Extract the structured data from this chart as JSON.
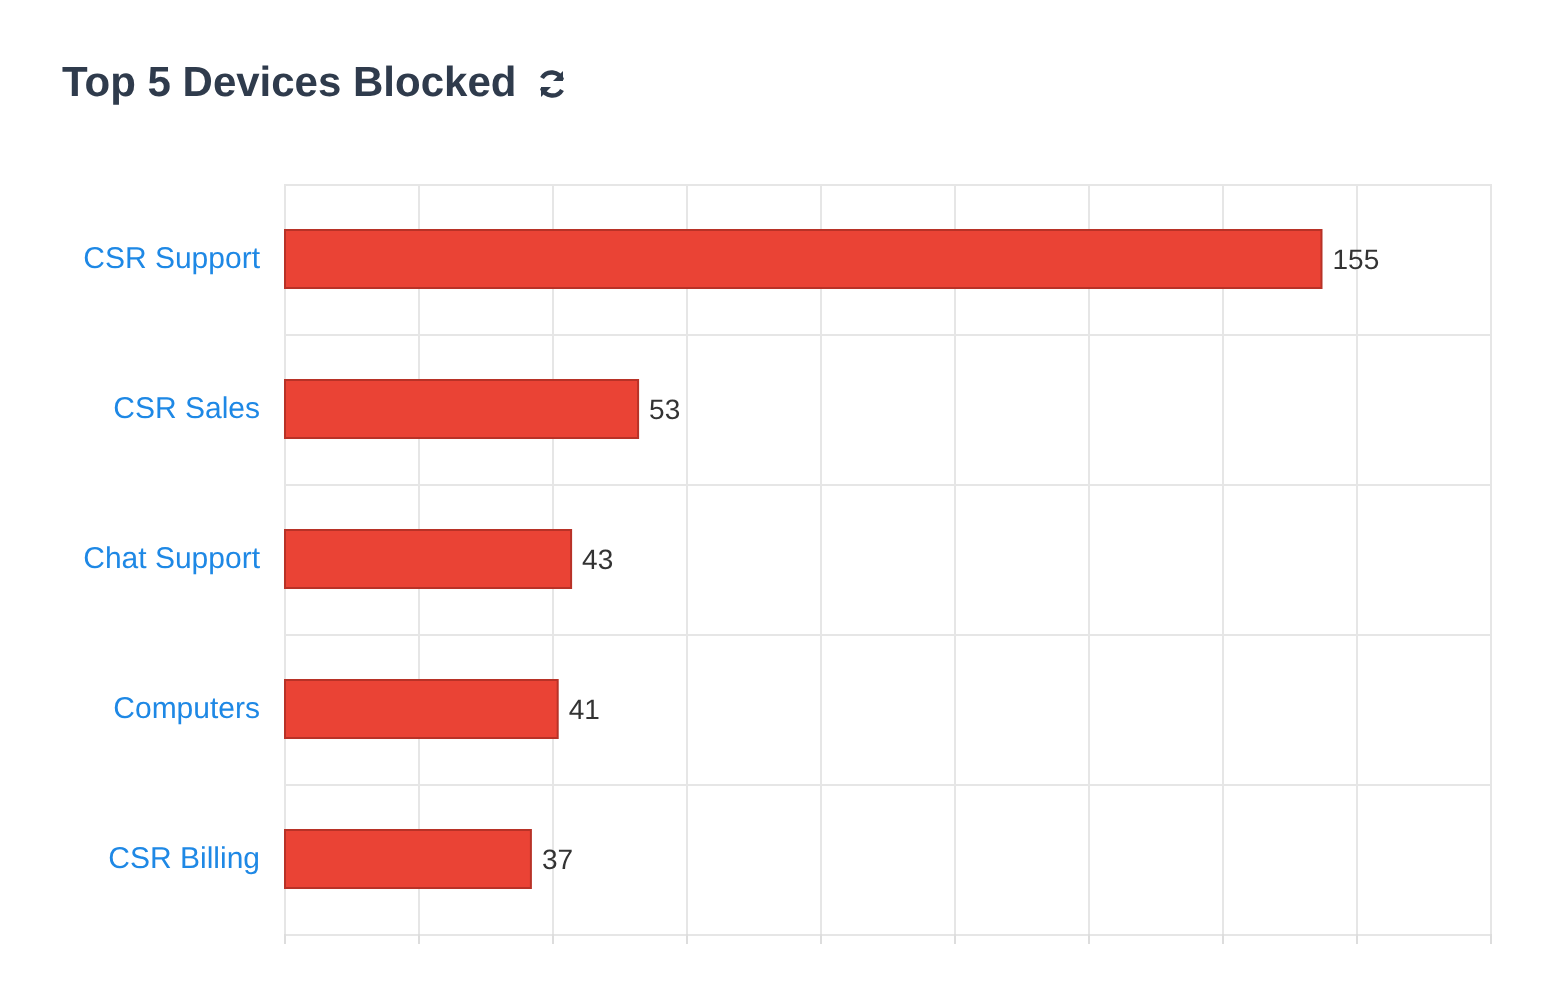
{
  "chart_data": {
    "type": "bar",
    "title": "Top 5 Devices Blocked",
    "orientation": "horizontal",
    "categories": [
      "CSR Support",
      "CSR Sales",
      "Chat Support",
      "Computers",
      "CSR Billing"
    ],
    "values": [
      155,
      53,
      43,
      41,
      37
    ],
    "color": "#ea4335",
    "data_labels": true,
    "xlim": [
      0,
      180
    ],
    "xticks": [
      {
        "value": 0,
        "label": null
      },
      {
        "value": 20,
        "label": null
      },
      {
        "value": 40,
        "label": null
      },
      {
        "value": 60,
        "label": null
      },
      {
        "value": 80,
        "label": null
      },
      {
        "value": 100,
        "label": null
      },
      {
        "value": 120,
        "label": null
      },
      {
        "value": 140,
        "label": null
      },
      {
        "value": 160,
        "label": null
      },
      {
        "value": 180,
        "label": null
      }
    ],
    "tick_labels": "y",
    "grid": true
  }
}
